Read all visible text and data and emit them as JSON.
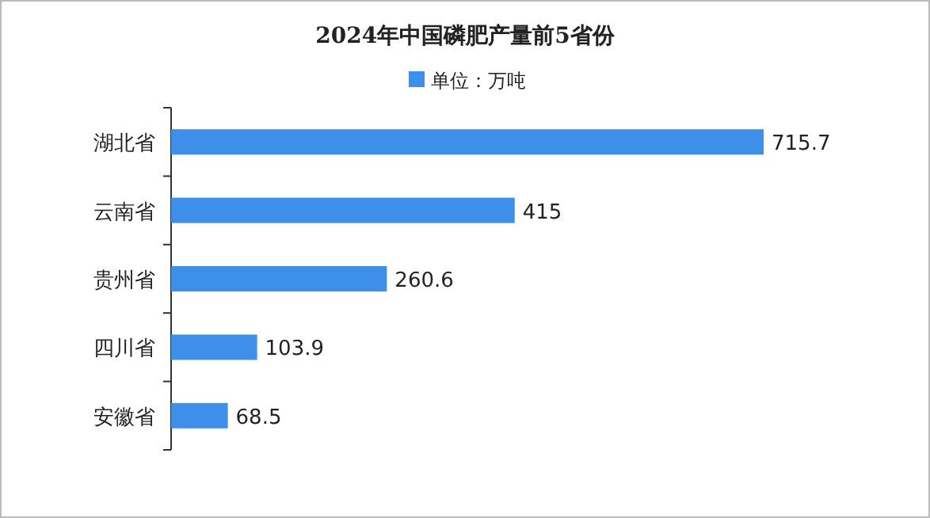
{
  "chart_data": {
    "type": "bar",
    "orientation": "horizontal",
    "title": "2024年中国磷肥产量前5省份",
    "categories": [
      "湖北省",
      "云南省",
      "贵州省",
      "四川省",
      "安徽省"
    ],
    "series": [
      {
        "name": "单位：万吨",
        "color": "#3d8fe8",
        "values": [
          715.7,
          415,
          260.6,
          103.9,
          68.5
        ]
      }
    ],
    "data_labels": true,
    "legend": "top",
    "grid": false
  }
}
